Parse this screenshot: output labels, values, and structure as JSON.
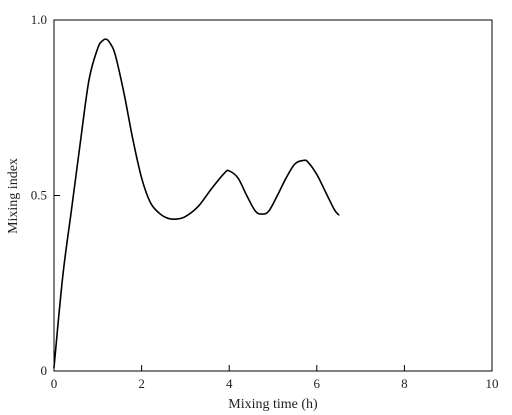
{
  "chart_data": {
    "type": "line",
    "title": "",
    "xlabel": "Mixing time (h)",
    "ylabel": "Mixing index",
    "xlim": [
      0,
      10
    ],
    "ylim": [
      0,
      1.0
    ],
    "x_ticks": [
      0,
      2,
      4,
      6,
      8,
      10
    ],
    "x_tick_labels": [
      "0",
      "2",
      "4",
      "6",
      "8",
      "10"
    ],
    "y_ticks": [
      0,
      0.5,
      1.0
    ],
    "y_tick_labels": [
      "0",
      "0.5",
      "1.0"
    ],
    "grid": false,
    "legend": "none",
    "line_color": "#000000",
    "series": [
      {
        "x": [
          0,
          0.2,
          0.4,
          0.6,
          0.8,
          1.0,
          1.1,
          1.2,
          1.3,
          1.4,
          1.6,
          1.8,
          2.0,
          2.2,
          2.4,
          2.6,
          2.8,
          3.0,
          3.3,
          3.6,
          3.9,
          4.0,
          4.2,
          4.4,
          4.6,
          4.75,
          4.9,
          5.1,
          5.3,
          5.5,
          5.7,
          5.8,
          6.0,
          6.2,
          6.4,
          6.5
        ],
        "y": [
          0.01,
          0.27,
          0.46,
          0.65,
          0.83,
          0.92,
          0.94,
          0.945,
          0.93,
          0.9,
          0.79,
          0.66,
          0.55,
          0.48,
          0.45,
          0.435,
          0.433,
          0.44,
          0.47,
          0.52,
          0.565,
          0.57,
          0.55,
          0.5,
          0.455,
          0.447,
          0.455,
          0.5,
          0.55,
          0.59,
          0.6,
          0.595,
          0.56,
          0.51,
          0.46,
          0.445
        ]
      }
    ]
  }
}
